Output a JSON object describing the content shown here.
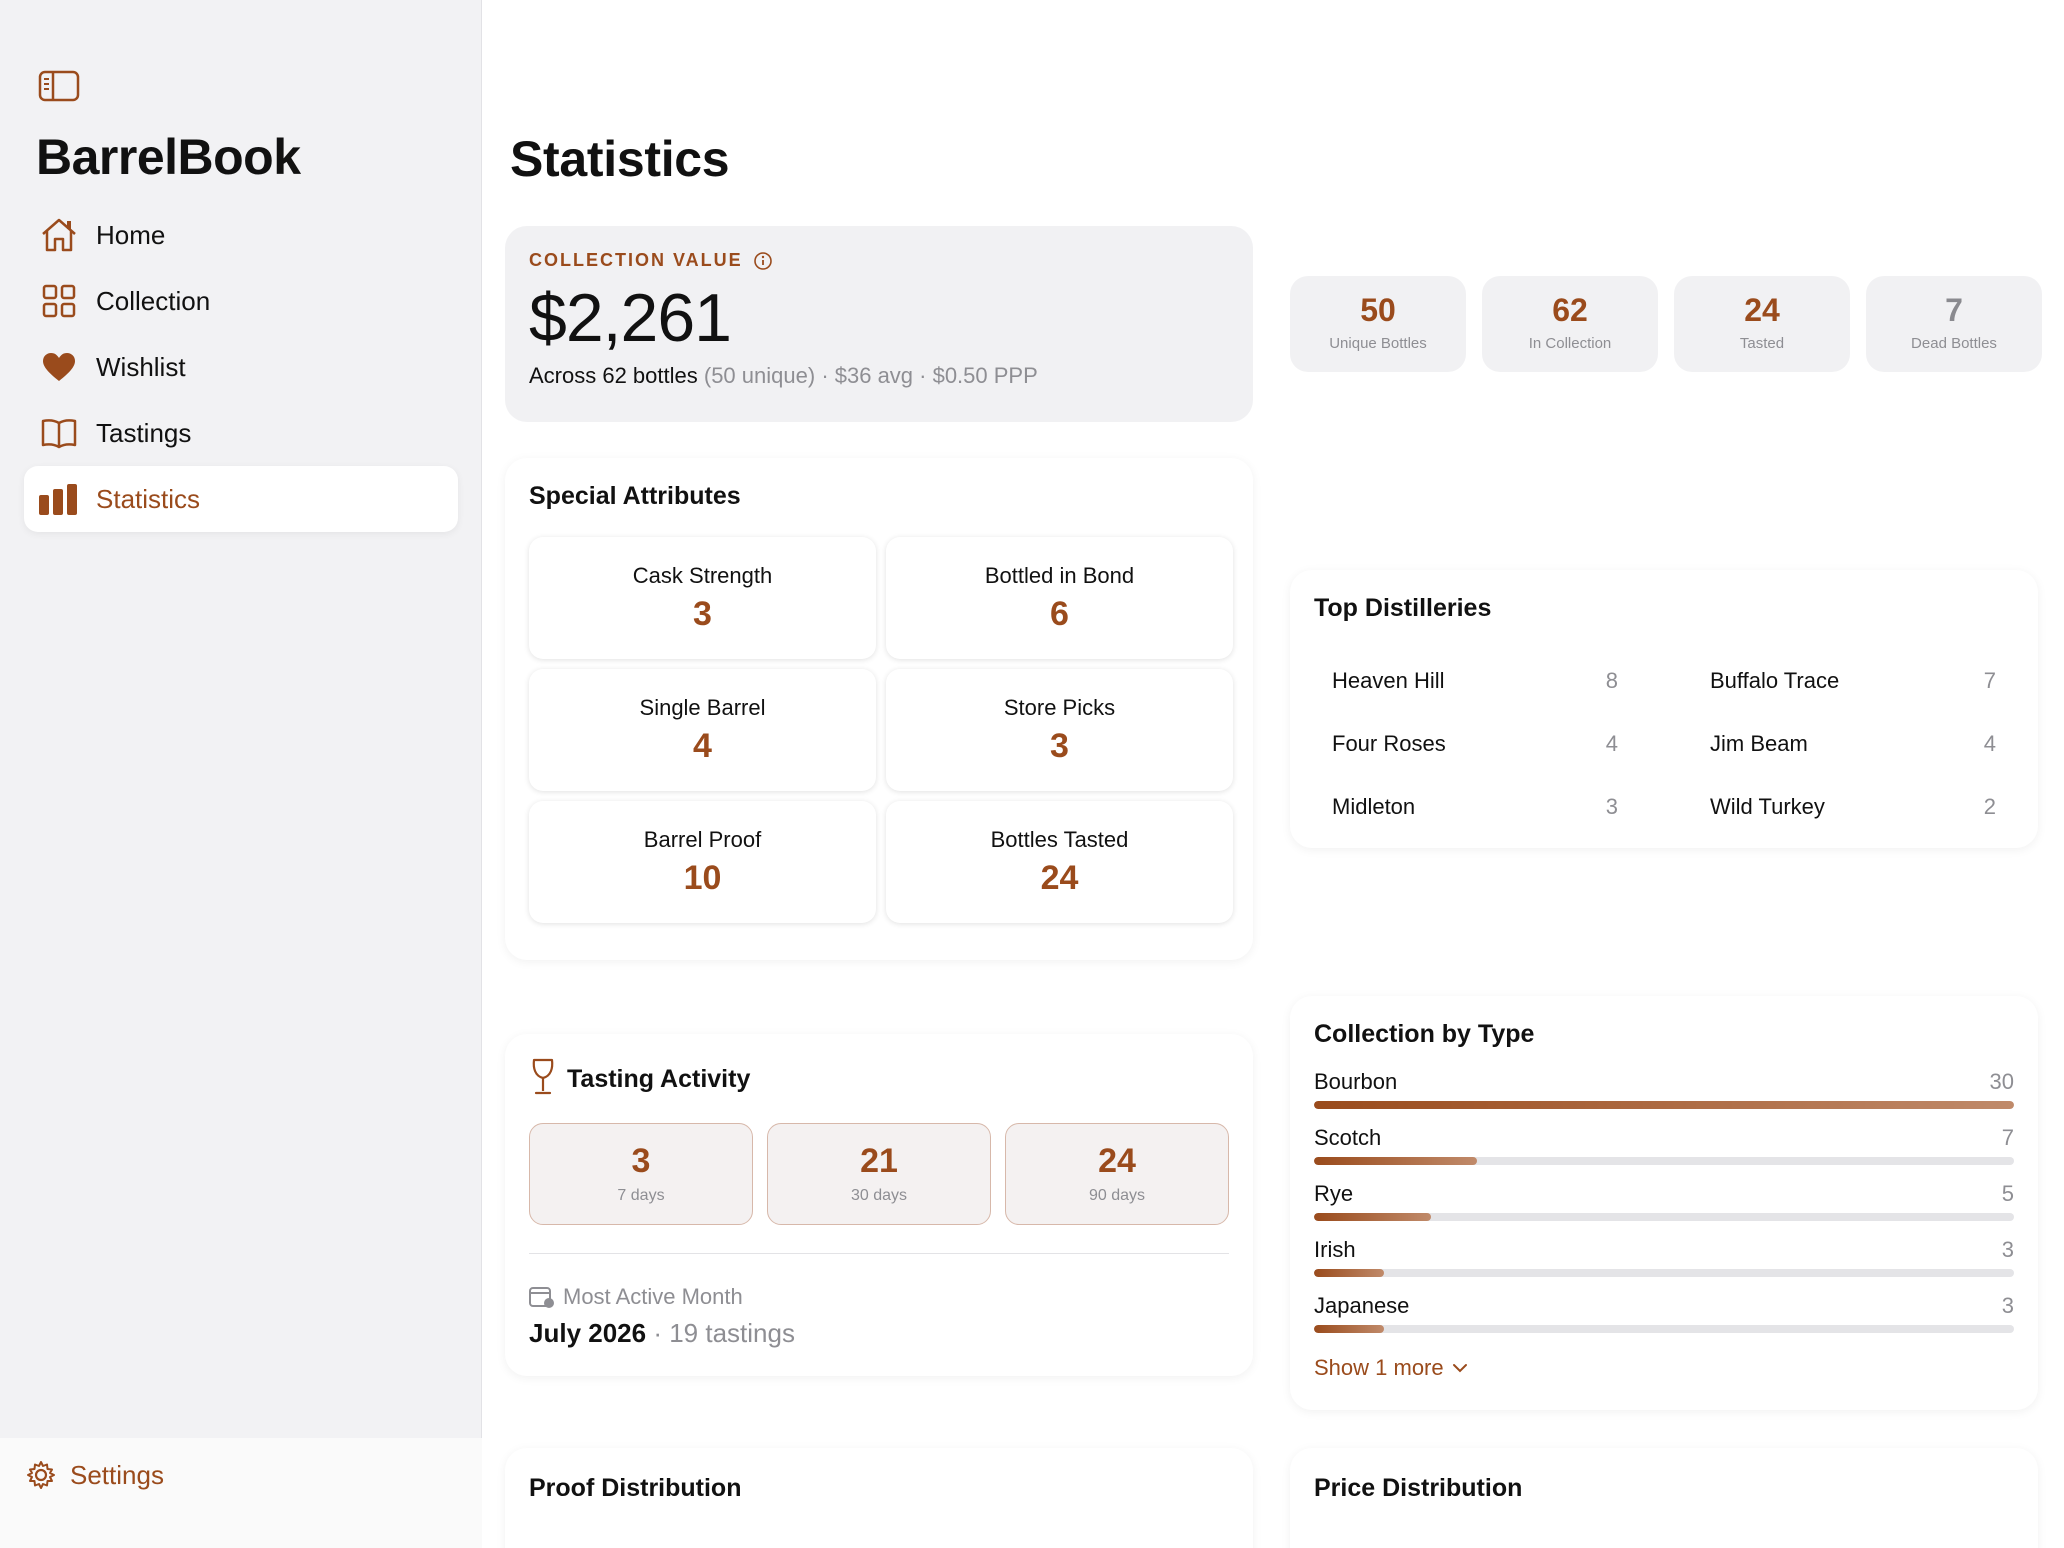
{
  "app": {
    "brand": "BarrelBook"
  },
  "colors": {
    "accent": "#9a4b1c",
    "muted": "#8e8e93"
  },
  "sidebar": {
    "items": [
      {
        "label": "Home",
        "icon": "house-icon"
      },
      {
        "label": "Collection",
        "icon": "grid-icon"
      },
      {
        "label": "Wishlist",
        "icon": "heart-icon"
      },
      {
        "label": "Tastings",
        "icon": "book-icon"
      },
      {
        "label": "Statistics",
        "icon": "bar-chart-icon",
        "active": true
      }
    ],
    "settings_label": "Settings"
  },
  "page": {
    "title": "Statistics"
  },
  "collection_value": {
    "label": "COLLECTION VALUE",
    "amount": "$2,261",
    "sub_main": "Across 62 bottles",
    "sub_unique": "(50 unique)",
    "sub_rest": "· $36 avg · $0.50 PPP"
  },
  "stat_tiles": [
    {
      "value": "50",
      "caption": "Unique Bottles"
    },
    {
      "value": "62",
      "caption": "In Collection"
    },
    {
      "value": "24",
      "caption": "Tasted"
    },
    {
      "value": "7",
      "caption": "Dead Bottles"
    }
  ],
  "special_attributes": {
    "title": "Special Attributes",
    "items": [
      {
        "label": "Cask Strength",
        "value": "3"
      },
      {
        "label": "Bottled in Bond",
        "value": "6"
      },
      {
        "label": "Single Barrel",
        "value": "4"
      },
      {
        "label": "Store Picks",
        "value": "3"
      },
      {
        "label": "Barrel Proof",
        "value": "10"
      },
      {
        "label": "Bottles Tasted",
        "value": "24"
      }
    ]
  },
  "tasting_activity": {
    "title": "Tasting Activity",
    "periods": [
      {
        "value": "3",
        "caption": "7 days"
      },
      {
        "value": "21",
        "caption": "30 days"
      },
      {
        "value": "24",
        "caption": "90 days"
      }
    ],
    "most_active_label": "Most Active Month",
    "most_active_month": "July 2026",
    "most_active_count": " · 19 tastings"
  },
  "top_distilleries": {
    "title": "Top Distilleries",
    "items": [
      {
        "name": "Heaven Hill",
        "count": "8"
      },
      {
        "name": "Buffalo Trace",
        "count": "7"
      },
      {
        "name": "Four Roses",
        "count": "4"
      },
      {
        "name": "Jim Beam",
        "count": "4"
      },
      {
        "name": "Midleton",
        "count": "3"
      },
      {
        "name": "Wild Turkey",
        "count": "2"
      }
    ]
  },
  "collection_by_type": {
    "title": "Collection by Type",
    "max": 30,
    "items": [
      {
        "name": "Bourbon",
        "count": "30",
        "value": 30
      },
      {
        "name": "Scotch",
        "count": "7",
        "value": 7
      },
      {
        "name": "Rye",
        "count": "5",
        "value": 5
      },
      {
        "name": "Irish",
        "count": "3",
        "value": 3
      },
      {
        "name": "Japanese",
        "count": "3",
        "value": 3
      }
    ],
    "show_more": "Show 1 more"
  },
  "proof_distribution": {
    "title": "Proof Distribution"
  },
  "price_distribution": {
    "title": "Price Distribution"
  }
}
